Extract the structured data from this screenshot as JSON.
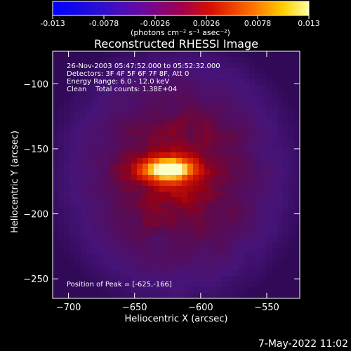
{
  "colorbar": {
    "ticks": [
      "-0.013",
      "-0.0078",
      "-0.0026",
      "0.0026",
      "0.0078",
      "0.013"
    ],
    "unit_label": "(photons cm⁻² s⁻¹ asec⁻²)",
    "range": [
      -0.013,
      0.013
    ]
  },
  "chart_data": {
    "type": "heatmap",
    "title": "Reconstructed RHESSI Image",
    "xlabel": "Heliocentric X (arcsec)",
    "ylabel": "Heliocentric Y (arcsec)",
    "xlim": [
      -712,
      -525
    ],
    "ylim": [
      -265,
      -75
    ],
    "xticks": [
      -700,
      -650,
      -600,
      -550
    ],
    "xtick_labels": [
      "−700",
      "−650",
      "−600",
      "−550"
    ],
    "yticks": [
      -100,
      -150,
      -200,
      -250
    ],
    "ytick_labels": [
      "−100",
      "−150",
      "−200",
      "−250"
    ],
    "peak": {
      "x": -625,
      "y": -166
    },
    "annotations": [
      "26-Nov-2003 05:47:52.000 to 05:52:32.000",
      "Detectors: 3F 4F 5F 6F 7F 8F, Att 0",
      "Energy Range: 6.0 - 12.0 keV",
      "Clean    Total counts: 1.38E+04"
    ],
    "peak_label": "Position of Peak = [-625,-166]"
  },
  "footer": {
    "date": "7-May-2022 11:02"
  }
}
